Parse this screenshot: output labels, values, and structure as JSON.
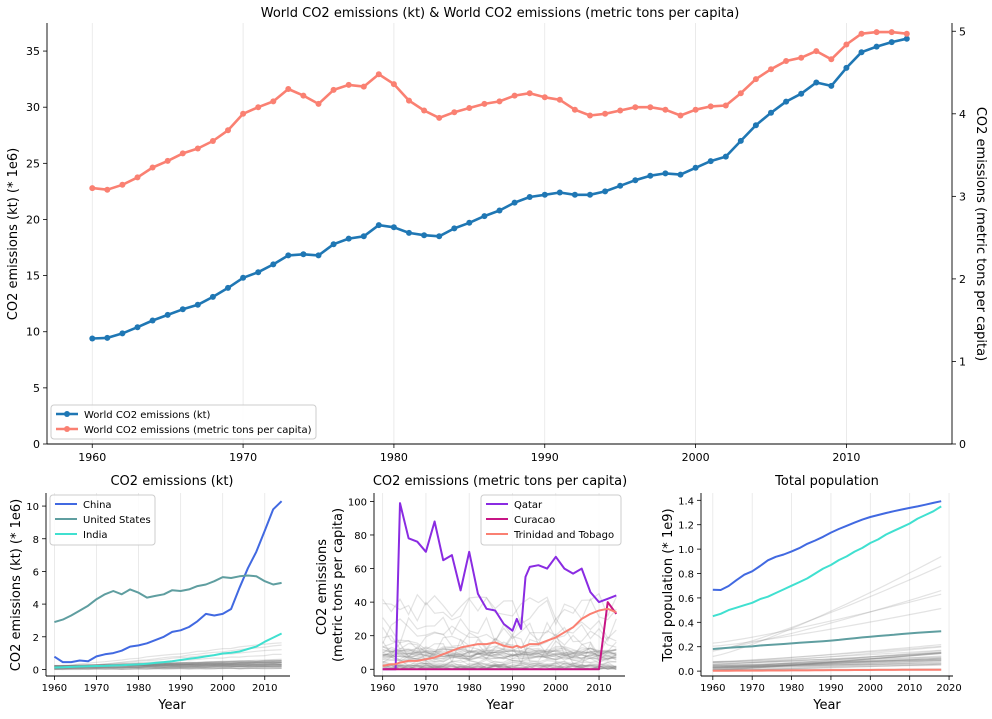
{
  "chart_data": [
    {
      "type": "line",
      "title": "World CO2 emissions (kt) & World CO2 emissions (metric tons per capita)",
      "xlabel": "",
      "ylabel": "CO2 emissions (kt) (* 1e6)",
      "ylabel_right": "CO2 emissions (metric tons per capita)",
      "xlim": [
        1957,
        2017
      ],
      "ylim": [
        0,
        37.5
      ],
      "ylim_right": [
        0,
        5.1
      ],
      "xticks": [
        1960,
        1970,
        1980,
        1990,
        2000,
        2010
      ],
      "yticks": [
        0,
        5,
        10,
        15,
        20,
        25,
        30,
        35
      ],
      "yticks_right": [
        0,
        1,
        2,
        3,
        4,
        5
      ],
      "grid": "x",
      "legend_position": "bottom-left",
      "x": [
        1960,
        1961,
        1962,
        1963,
        1964,
        1965,
        1966,
        1967,
        1968,
        1969,
        1970,
        1971,
        1972,
        1973,
        1974,
        1975,
        1976,
        1977,
        1978,
        1979,
        1980,
        1981,
        1982,
        1983,
        1984,
        1985,
        1986,
        1987,
        1988,
        1989,
        1990,
        1991,
        1992,
        1993,
        1994,
        1995,
        1996,
        1997,
        1998,
        1999,
        2000,
        2001,
        2002,
        2003,
        2004,
        2005,
        2006,
        2007,
        2008,
        2009,
        2010,
        2011,
        2012,
        2013,
        2014
      ],
      "series": [
        {
          "name": "World CO2 emissions (kt)",
          "axis": "left",
          "color": "#1f77b4",
          "values": [
            9.4,
            9.45,
            9.85,
            10.4,
            11.0,
            11.5,
            12.0,
            12.4,
            13.1,
            13.9,
            14.8,
            15.3,
            16.0,
            16.8,
            16.9,
            16.8,
            17.8,
            18.3,
            18.5,
            19.5,
            19.3,
            18.8,
            18.6,
            18.5,
            19.2,
            19.7,
            20.3,
            20.8,
            21.5,
            22.0,
            22.2,
            22.4,
            22.2,
            22.2,
            22.5,
            23.0,
            23.5,
            23.9,
            24.1,
            24.0,
            24.6,
            25.2,
            25.6,
            27.0,
            28.4,
            29.5,
            30.5,
            31.2,
            32.2,
            31.9,
            33.5,
            34.9,
            35.4,
            35.8,
            36.1
          ]
        },
        {
          "name": "World CO2 emissions (metric tons per capita)",
          "axis": "right",
          "color": "#fa8072",
          "values": [
            3.1,
            3.08,
            3.14,
            3.23,
            3.35,
            3.43,
            3.52,
            3.58,
            3.67,
            3.8,
            4.0,
            4.08,
            4.15,
            4.3,
            4.22,
            4.12,
            4.29,
            4.35,
            4.33,
            4.48,
            4.36,
            4.16,
            4.04,
            3.95,
            4.02,
            4.07,
            4.12,
            4.15,
            4.22,
            4.25,
            4.2,
            4.17,
            4.05,
            3.98,
            4.0,
            4.04,
            4.08,
            4.08,
            4.05,
            3.98,
            4.05,
            4.09,
            4.1,
            4.25,
            4.42,
            4.54,
            4.64,
            4.68,
            4.76,
            4.66,
            4.84,
            4.97,
            4.99,
            4.99,
            4.97
          ]
        }
      ]
    },
    {
      "type": "line",
      "title": "CO2 emissions (kt)",
      "xlabel": "Year",
      "ylabel": "CO2 emissions (kt) (* 1e6)",
      "xlim": [
        1958,
        2016
      ],
      "ylim": [
        -0.4,
        10.8
      ],
      "xticks": [
        1960,
        1970,
        1980,
        1990,
        2000,
        2010
      ],
      "yticks": [
        0,
        2,
        4,
        6,
        8,
        10
      ],
      "grid": "x",
      "legend_position": "top-left",
      "x": [
        1960,
        1962,
        1964,
        1966,
        1968,
        1970,
        1972,
        1974,
        1976,
        1978,
        1980,
        1982,
        1984,
        1986,
        1988,
        1990,
        1992,
        1994,
        1996,
        1998,
        2000,
        2002,
        2004,
        2006,
        2008,
        2010,
        2012,
        2014
      ],
      "series": [
        {
          "name": "China",
          "color": "#4169e1",
          "values": [
            0.78,
            0.45,
            0.45,
            0.55,
            0.5,
            0.8,
            0.93,
            1.0,
            1.15,
            1.4,
            1.47,
            1.6,
            1.8,
            2.0,
            2.3,
            2.4,
            2.6,
            2.95,
            3.4,
            3.3,
            3.4,
            3.7,
            5.0,
            6.2,
            7.2,
            8.5,
            9.8,
            10.3
          ]
        },
        {
          "name": "United States",
          "color": "#5f9ea0",
          "values": [
            2.9,
            3.05,
            3.3,
            3.6,
            3.9,
            4.3,
            4.6,
            4.8,
            4.6,
            4.9,
            4.7,
            4.4,
            4.5,
            4.6,
            4.85,
            4.8,
            4.9,
            5.1,
            5.2,
            5.4,
            5.65,
            5.6,
            5.7,
            5.75,
            5.7,
            5.4,
            5.2,
            5.3
          ]
        },
        {
          "name": "India",
          "color": "#40e0d0",
          "values": [
            0.12,
            0.14,
            0.16,
            0.18,
            0.2,
            0.21,
            0.22,
            0.24,
            0.26,
            0.29,
            0.31,
            0.35,
            0.4,
            0.45,
            0.5,
            0.58,
            0.65,
            0.72,
            0.8,
            0.88,
            0.98,
            1.02,
            1.1,
            1.25,
            1.4,
            1.7,
            1.95,
            2.2
          ]
        }
      ]
    },
    {
      "type": "line",
      "title": "CO2 emissions (metric tons per capita)",
      "xlabel": "Year",
      "ylabel": "CO2 emissions\n(metric tons per capita)",
      "xlim": [
        1958,
        2016
      ],
      "ylim": [
        -4,
        105
      ],
      "xticks": [
        1960,
        1970,
        1980,
        1990,
        2000,
        2010
      ],
      "yticks": [
        0,
        20,
        40,
        60,
        80,
        100
      ],
      "grid": "x",
      "legend_position": "top-right",
      "x": [
        1960,
        1962,
        1963,
        1964,
        1966,
        1968,
        1970,
        1972,
        1974,
        1976,
        1978,
        1980,
        1982,
        1984,
        1986,
        1988,
        1990,
        1991,
        1992,
        1993,
        1994,
        1996,
        1998,
        2000,
        2002,
        2004,
        2006,
        2008,
        2010,
        2012,
        2014
      ],
      "series": [
        {
          "name": "Qatar",
          "color": "#8a2be2",
          "values": [
            0,
            0,
            0,
            99,
            78,
            76,
            70,
            88,
            65,
            68,
            47,
            70,
            45,
            36,
            35,
            27,
            23,
            30,
            24,
            55,
            61,
            62,
            60,
            67,
            60,
            57,
            60,
            46,
            40,
            42,
            44
          ]
        },
        {
          "name": "Curacao",
          "color": "#c71585",
          "values": [
            0,
            0,
            0,
            0,
            0,
            0,
            0,
            0,
            0,
            0,
            0,
            0,
            0,
            0,
            0,
            0,
            0,
            0,
            0,
            0,
            0,
            0,
            0,
            0,
            0,
            0,
            0,
            0,
            0,
            40,
            33
          ]
        },
        {
          "name": "Trinidad and Tobago",
          "color": "#fa8072",
          "values": [
            2,
            3,
            3,
            4,
            5,
            5,
            6,
            7,
            9,
            11,
            13,
            14,
            15,
            15,
            16,
            14,
            13,
            14,
            13,
            14,
            15,
            15,
            17,
            19,
            22,
            25,
            30,
            33,
            35,
            36,
            34
          ]
        }
      ]
    },
    {
      "type": "line",
      "title": "Total population",
      "xlabel": "Year",
      "ylabel": "Total population (* 1e9)",
      "xlim": [
        1957,
        2021
      ],
      "ylim": [
        -0.04,
        1.46
      ],
      "xticks": [
        1960,
        1970,
        1980,
        1990,
        2000,
        2010,
        2020
      ],
      "yticks": [
        0.0,
        0.2,
        0.4,
        0.6,
        0.8,
        1.0,
        1.2,
        1.4
      ],
      "grid": "x",
      "x": [
        1960,
        1962,
        1964,
        1966,
        1968,
        1970,
        1972,
        1974,
        1976,
        1978,
        1980,
        1982,
        1984,
        1986,
        1988,
        1990,
        1992,
        1994,
        1996,
        1998,
        2000,
        2002,
        2004,
        2006,
        2008,
        2010,
        2012,
        2014,
        2016,
        2018
      ],
      "series": [
        {
          "color": "#4169e1",
          "values": [
            0.667,
            0.665,
            0.698,
            0.745,
            0.79,
            0.818,
            0.862,
            0.908,
            0.937,
            0.956,
            0.981,
            1.008,
            1.044,
            1.071,
            1.101,
            1.135,
            1.165,
            1.191,
            1.217,
            1.242,
            1.263,
            1.28,
            1.296,
            1.311,
            1.325,
            1.338,
            1.35,
            1.364,
            1.379,
            1.393
          ]
        },
        {
          "color": "#40e0d0",
          "values": [
            0.45,
            0.47,
            0.5,
            0.52,
            0.54,
            0.56,
            0.59,
            0.61,
            0.64,
            0.67,
            0.7,
            0.73,
            0.76,
            0.8,
            0.84,
            0.87,
            0.91,
            0.94,
            0.98,
            1.01,
            1.05,
            1.08,
            1.12,
            1.15,
            1.18,
            1.21,
            1.25,
            1.28,
            1.31,
            1.35
          ]
        },
        {
          "color": "#5f9ea0",
          "values": [
            0.181,
            0.186,
            0.192,
            0.196,
            0.2,
            0.203,
            0.21,
            0.214,
            0.218,
            0.222,
            0.227,
            0.232,
            0.236,
            0.24,
            0.245,
            0.25,
            0.256,
            0.263,
            0.27,
            0.276,
            0.282,
            0.288,
            0.293,
            0.298,
            0.304,
            0.309,
            0.314,
            0.318,
            0.323,
            0.327
          ]
        },
        {
          "color": "#fa8072",
          "values": [
            0.003,
            0.003,
            0.003,
            0.004,
            0.004,
            0.004,
            0.004,
            0.005,
            0.005,
            0.005,
            0.006,
            0.006,
            0.006,
            0.007,
            0.007,
            0.008,
            0.008,
            0.008,
            0.009,
            0.009,
            0.009,
            0.01,
            0.01,
            0.01,
            0.011,
            0.011,
            0.011,
            0.012,
            0.012,
            0.012
          ]
        }
      ]
    }
  ]
}
